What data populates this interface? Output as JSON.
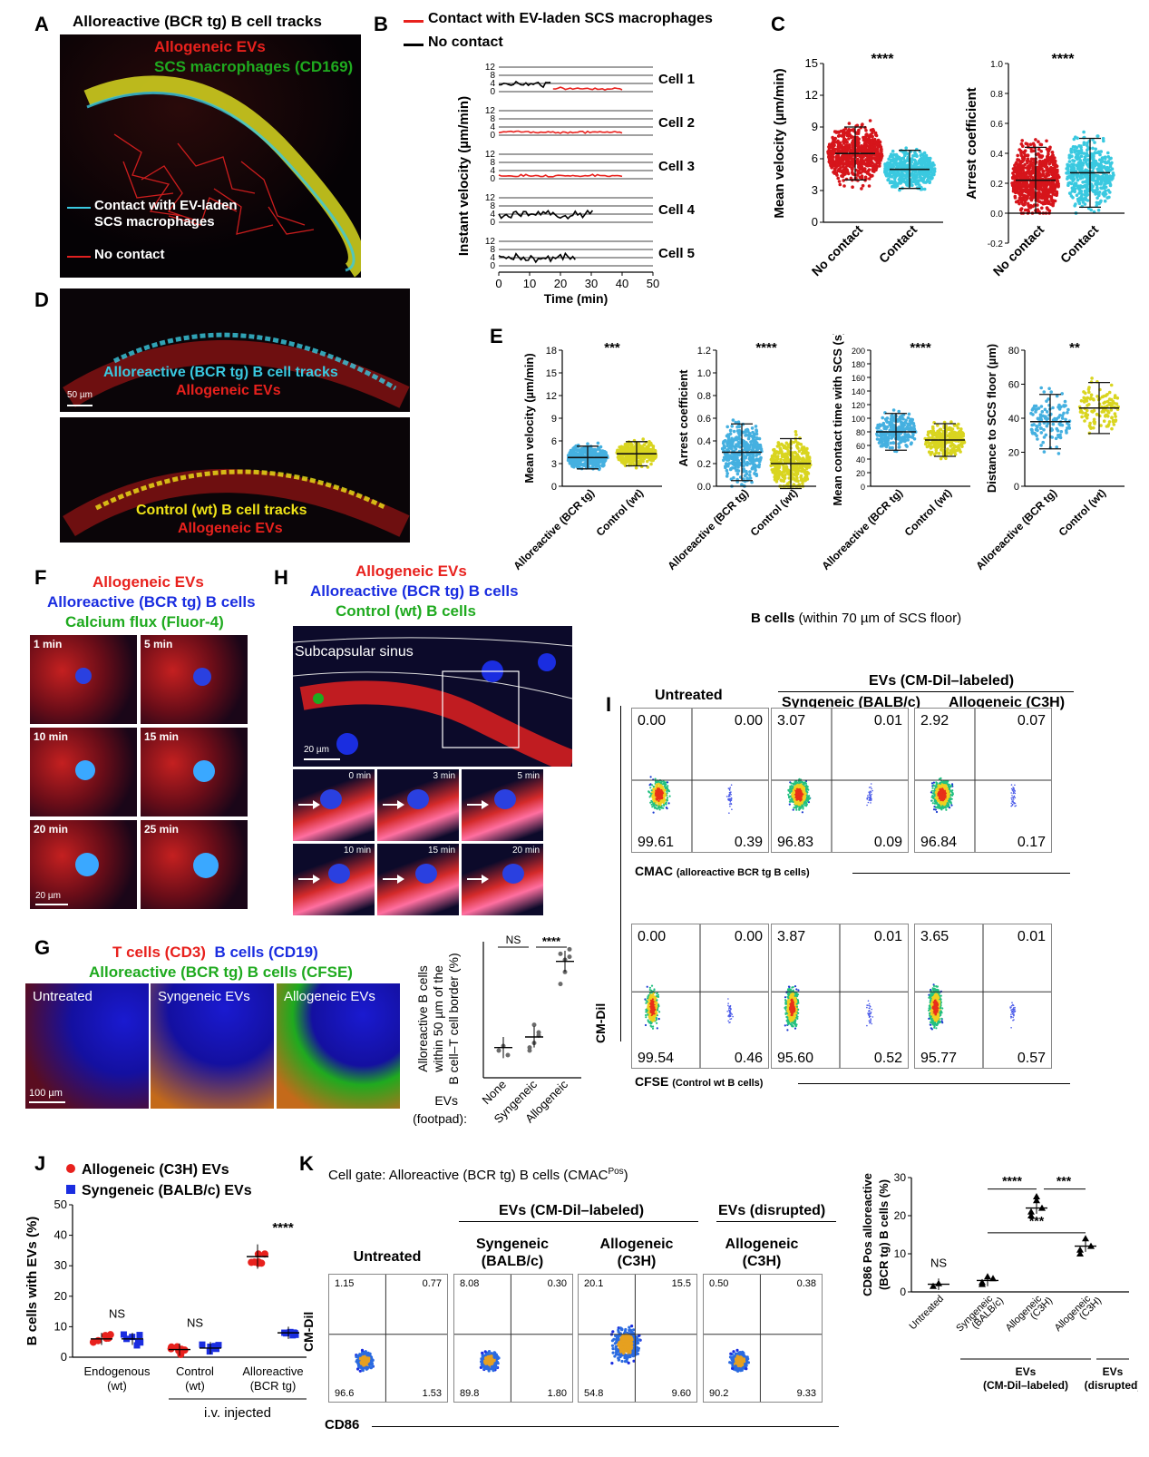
{
  "panels": {
    "A": {
      "letter": "A",
      "title": "Alloreactive  (BCR tg) B cell tracks",
      "l1": "Allogeneic EVs",
      "l2": "SCS macrophages (CD169)",
      "l3a": "Contact with EV-laden",
      "l3b": "SCS macrophages",
      "l4": "No contact"
    },
    "B": {
      "letter": "B",
      "legend_contact": "Contact with EV-laden SCS macrophages",
      "legend_none": "No contact",
      "ylabel": "Instant velocity (µm/min)",
      "xlabel": "Time (min)",
      "cells": [
        "Cell 1",
        "Cell 2",
        "Cell 3",
        "Cell 4",
        "Cell 5"
      ],
      "yticks": [
        "12",
        "8",
        "4",
        "0"
      ],
      "xticks": [
        "0",
        "10",
        "20",
        "30",
        "40",
        "50"
      ]
    },
    "C": {
      "letter": "C",
      "stars1": "****",
      "stars2": "****",
      "ylabel1": "Mean velocity (µm/min)",
      "ylabel2": "Arrest coefficient",
      "yt1": [
        "15",
        "12",
        "9",
        "6",
        "3",
        "0"
      ],
      "yt2": [
        "1.0",
        "0.8",
        "0.6",
        "0.4",
        "0.2",
        "0.0",
        "-0.2"
      ],
      "cat1": "No contact",
      "cat2": "Contact"
    },
    "D": {
      "letter": "D",
      "l1": "Alloreactive (BCR tg) B cell tracks",
      "l2": "Allogeneic EVs",
      "scale": "50 µm",
      "l3": "Control (wt) B cell tracks",
      "l4": "Allogeneic EVs"
    },
    "E": {
      "letter": "E",
      "cat1": "Alloreactive (BCR tg)",
      "cat2": "Control (wt)",
      "plots": [
        {
          "ylabel": "Mean velocity (µm/min)",
          "stars": "***",
          "yt": [
            "18",
            "15",
            "12",
            "9",
            "6",
            "3",
            "0"
          ]
        },
        {
          "ylabel": "Arrest coefficient",
          "stars": "****",
          "yt": [
            "1.2",
            "1.0",
            "0.8",
            "0.6",
            "0.4",
            "0.2",
            "0.0"
          ]
        },
        {
          "ylabel": "Mean contact time with SCS (s)",
          "stars": "****",
          "yt": [
            "200",
            "180",
            "160",
            "140",
            "120",
            "100",
            "80",
            "60",
            "40",
            "20",
            "0"
          ]
        },
        {
          "ylabel": "Distance to SCS floor (µm)",
          "stars": "**",
          "yt": [
            "80",
            "60",
            "40",
            "20",
            "0"
          ]
        }
      ]
    },
    "F": {
      "letter": "F",
      "l1": "Allogeneic EVs",
      "l2": "Alloreactive (BCR tg) B cells",
      "l3": "Calcium flux (Fluor-4)",
      "times": [
        "1 min",
        "5 min",
        "10 min",
        "15 min",
        "20 min",
        "25 min"
      ],
      "scale": "20 µm"
    },
    "G": {
      "letter": "G",
      "l1a": "T cells (CD3)",
      "l1b": "B cells (CD19)",
      "l2": "Alloreactive (BCR tg) B cells (CFSE)",
      "panes": [
        "Untreated",
        "Syngeneic EVs",
        "Allogeneic EVs"
      ],
      "scale": "100 µm",
      "ylabel1": "Alloreactive B cells",
      "ylabel2": "within 50 µm of the",
      "ylabel3": "B cell–T cell border (%)",
      "ns": "NS",
      "stars": "****",
      "evs1": "EVs",
      "evs2": "(footpad):",
      "cats": [
        "None",
        "Syngeneic",
        "Allogeneic"
      ]
    },
    "H": {
      "letter": "H",
      "l1": "Allogeneic  EVs",
      "l2": "Alloreactive (BCR tg) B cells",
      "l3": "Control (wt) B cells",
      "sinus": "Subcapsular sinus",
      "scale": "20 µm",
      "times": [
        "0 min",
        "3 min",
        "5 min",
        "10 min",
        "15 min",
        "20 min"
      ]
    },
    "I": {
      "letter": "I",
      "header": "B cells",
      "header2": "(within 70 µm of SCS floor)",
      "untreated": "Untreated",
      "evs": "EVs (CM-Dil–labeled)",
      "syn": "Syngeneic (BALB/c)",
      "allo": "Allogeneic  (C3H)",
      "x1": "CMAC",
      "x1s": "(alloreactive BCR tg B cells)",
      "x2": "CFSE",
      "x2s": "(Control wt B cells)",
      "ylabel": "CM-Dil",
      "top": [
        [
          "0.00",
          "0.00",
          "99.61",
          "0.39"
        ],
        [
          "3.07",
          "0.01",
          "96.83",
          "0.09"
        ],
        [
          "2.92",
          "0.07",
          "96.84",
          "0.17"
        ]
      ],
      "bottom": [
        [
          "0.00",
          "0.00",
          "99.54",
          "0.46"
        ],
        [
          "3.87",
          "0.01",
          "95.60",
          "0.52"
        ],
        [
          "3.65",
          "0.01",
          "95.77",
          "0.57"
        ]
      ]
    },
    "J": {
      "letter": "J",
      "leg1": "Allogeneic (C3H) EVs",
      "leg2": "Syngeneic (BALB/c) EVs",
      "ylabel": "B cells with EVs (%)",
      "yt": [
        "50",
        "40",
        "30",
        "20",
        "10",
        "0"
      ],
      "cats": [
        [
          "Endogenous",
          "(wt)"
        ],
        [
          "Control",
          "(wt)"
        ],
        [
          "Alloreactive",
          "(BCR tg)"
        ]
      ],
      "iv": "i.v. injected",
      "ns1": "NS",
      "ns2": "NS",
      "stars": "****"
    },
    "K": {
      "letter": "K",
      "gate": "Cell gate: Alloreactive (BCR tg) B cells (CMAC",
      "gate_sup": "Pos",
      "gate_end": ")",
      "evs1": "EVs (CM-Dil–labeled)",
      "evs2": "EVs (disrupted)",
      "cols": [
        [
          "Untreated",
          ""
        ],
        [
          "Syngeneic",
          "(BALB/c)"
        ],
        [
          "Allogeneic",
          "(C3H)"
        ],
        [
          "Allogeneic",
          "(C3H)"
        ]
      ],
      "q": [
        [
          "1.15",
          "0.77",
          "96.6",
          "1.53"
        ],
        [
          "8.08",
          "0.30",
          "89.8",
          "1.80"
        ],
        [
          "20.1",
          "15.5",
          "54.8",
          "9.60"
        ],
        [
          "0.50",
          "0.38",
          "90.2",
          "9.33"
        ]
      ],
      "ylabel": "CM-Dil",
      "xlabel": "CD86",
      "bar_ylabel1": "CD86",
      "bar_ysup": "Pos",
      "bar_ylabel2": " alloreactive",
      "bar_ylabel3": "(BCR tg) B cells (%)",
      "bar_yt": [
        "30",
        "20",
        "10",
        "0"
      ],
      "bar_cats": [
        [
          "Untreated",
          ""
        ],
        [
          "Syngeneic",
          "(BALB/c)"
        ],
        [
          "Allogeneic",
          "(C3H)"
        ],
        [
          "Allogeneic",
          "(C3H)"
        ]
      ],
      "bar_ns": "NS",
      "bar_s1": "****",
      "bar_s2": "***",
      "bar_s3": "***",
      "bar_g1a": "EVs",
      "bar_g1b": "(CM-Dil–labeled)",
      "bar_g2a": "EVs",
      "bar_g2b": "(disrupted)"
    }
  },
  "chart_data": [
    {
      "type": "scatter",
      "panel": "J",
      "ylabel": "B cells with EVs (%)",
      "ylim": [
        0,
        50
      ],
      "categories": [
        "Endogenous (wt)",
        "Control (wt)",
        "Alloreactive (BCR tg)"
      ],
      "series": [
        {
          "name": "Allogeneic (C3H) EVs",
          "means": [
            6,
            2.5,
            33
          ]
        },
        {
          "name": "Syngeneic (BALB/c) EVs",
          "means": [
            6,
            3,
            8
          ]
        }
      ]
    },
    {
      "type": "scatter",
      "panel": "K",
      "ylabel": "CD86Pos alloreactive (BCR tg) B cells (%)",
      "ylim": [
        0,
        30
      ],
      "categories": [
        "Untreated",
        "Syngeneic (BALB/c)",
        "Allogeneic (C3H)",
        "Allogeneic (C3H) disrupted"
      ],
      "means": [
        2,
        3,
        22,
        12
      ]
    },
    {
      "type": "scatter",
      "panel": "G",
      "ylabel": "Alloreactive B cells within 50 µm of the B cell–T cell border (%)",
      "categories": [
        "None",
        "Syngeneic",
        "Allogeneic"
      ],
      "means": [
        30,
        37,
        87
      ]
    }
  ]
}
